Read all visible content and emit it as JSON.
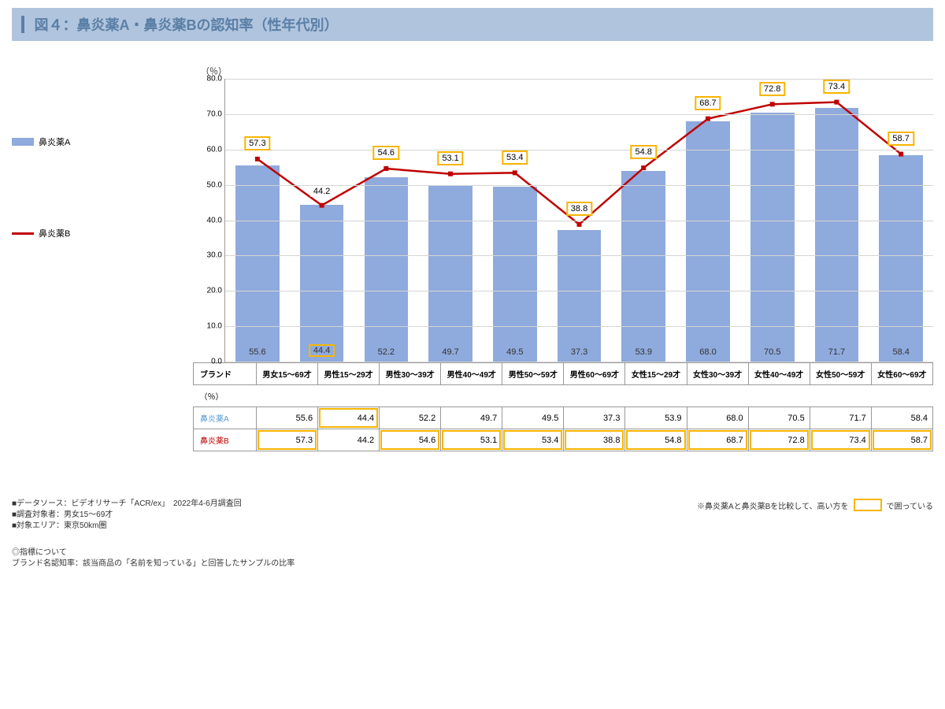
{
  "title": "図４：鼻炎薬A・鼻炎薬Bの認知率（性年代別）",
  "unit": "（％）",
  "legend": {
    "a": "鼻炎薬A",
    "b": "鼻炎薬B"
  },
  "colors": {
    "bar": "#8faadc",
    "line": "#c00000",
    "highlight": "#f7b500",
    "titlebar": "#b0c4de",
    "titletext": "#5b7fa6",
    "grid": "#d5d5d5"
  },
  "y": {
    "min": 0,
    "max": 80,
    "step": 10
  },
  "categories": [
    "男女15～69才",
    "男性15～29才",
    "男性30～39才",
    "男性40～49才",
    "男性50～59才",
    "男性60～69才",
    "女性15～29才",
    "女性30～39才",
    "女性40～49才",
    "女性50～59才",
    "女性60～69才"
  ],
  "seriesA": {
    "name": "鼻炎薬A",
    "values": [
      55.6,
      44.4,
      52.2,
      49.7,
      49.5,
      37.3,
      53.9,
      68.0,
      70.5,
      71.7,
      58.4
    ]
  },
  "seriesB": {
    "name": "鼻炎薬B",
    "values": [
      57.3,
      44.2,
      54.6,
      53.1,
      53.4,
      38.8,
      54.8,
      68.7,
      72.8,
      73.4,
      58.7
    ]
  },
  "highlightMaskA": [
    0,
    1,
    0,
    0,
    0,
    0,
    0,
    0,
    0,
    0,
    0
  ],
  "highlightMaskB": [
    1,
    0,
    1,
    1,
    1,
    1,
    1,
    1,
    1,
    1,
    1
  ],
  "table": {
    "header0": "ブランド",
    "unit": "（％）"
  },
  "footer": {
    "lines": [
      "■データソース：ビデオリサーチ「ACR/ex」　2022年4-6月調査回",
      "■調査対象者：男女15～69才",
      "■対象エリア：東京50km圏"
    ],
    "rightPre": "※鼻炎薬Aと鼻炎薬Bを比較して、高い方を",
    "rightPost": "で囲っている",
    "block2": [
      "◎指標について",
      "ブランド名認知率：該当商品の「名前を知っている」と回答したサンプルの比率"
    ]
  }
}
